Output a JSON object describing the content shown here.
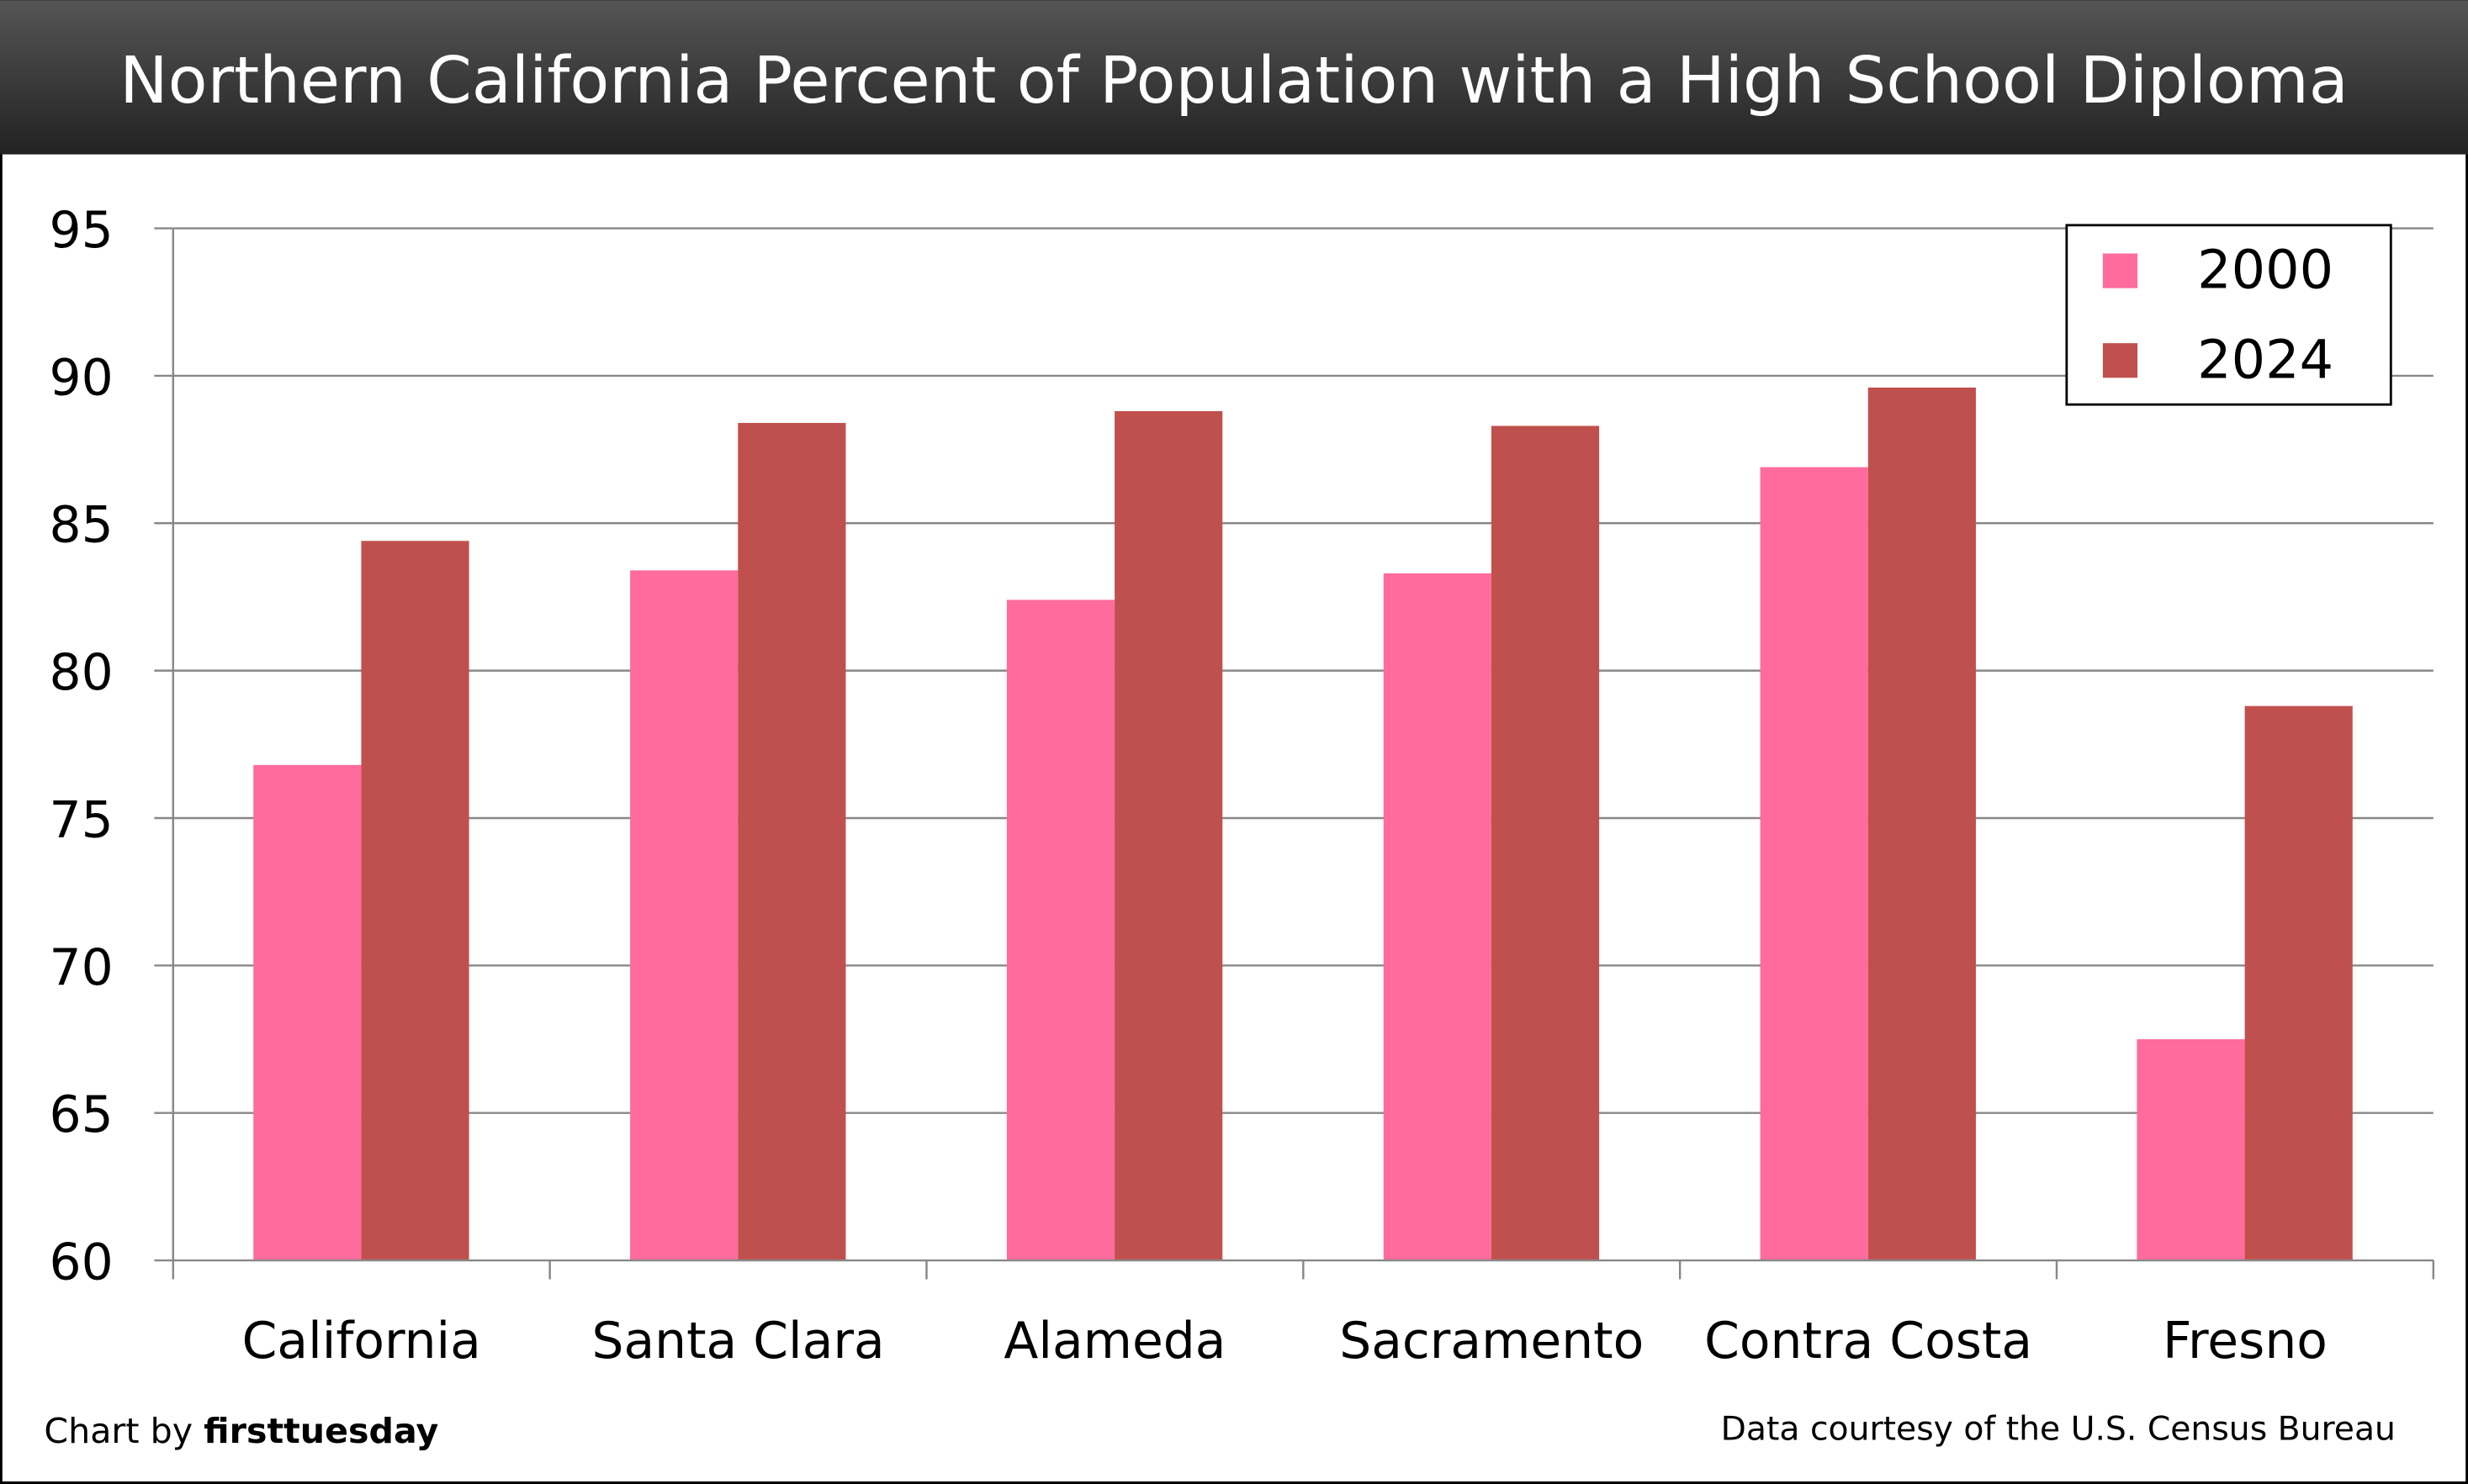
{
  "chart_data": {
    "type": "bar",
    "title": "Northern California Percent of Population with a High School Diploma",
    "xlabel": "",
    "ylabel": "",
    "ylim": [
      60,
      95
    ],
    "yticks": [
      "60",
      "65",
      "70",
      "75",
      "80",
      "85",
      "90",
      "95"
    ],
    "grid": true,
    "legend_position": "top-right",
    "categories": [
      "California",
      "Santa Clara",
      "Alameda",
      "Sacramento",
      "Contra Costa",
      "Fresno"
    ],
    "series": [
      {
        "name": "2000",
        "color": "#ff6b9c",
        "values": [
          76.8,
          83.4,
          82.4,
          83.3,
          86.9,
          67.5
        ]
      },
      {
        "name": "2024",
        "color": "#c0504d",
        "values": [
          84.4,
          88.4,
          88.8,
          88.3,
          89.6,
          78.8
        ]
      }
    ]
  },
  "footer": {
    "credit_prefix": "Chart by ",
    "credit_brand": "firsttuesday",
    "source": "Data courtesy of the U.S. Census Bureau"
  }
}
